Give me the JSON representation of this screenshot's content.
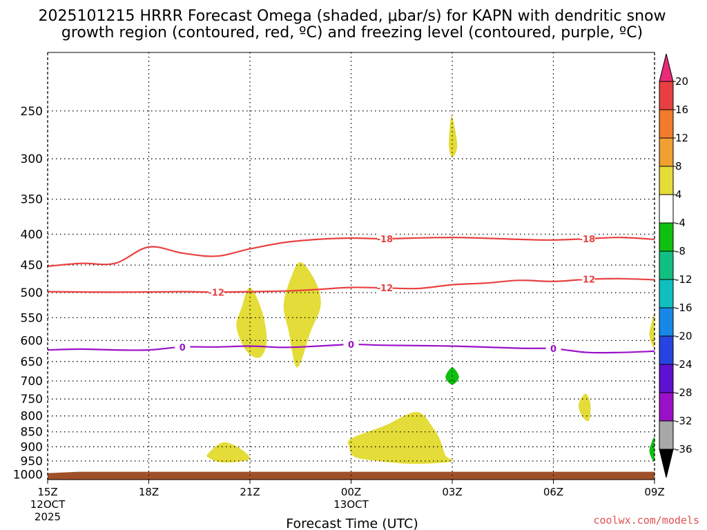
{
  "chart_data": {
    "type": "contour",
    "title_line1": "2025101215 HRRR Forecast Omega (shaded, μbar/s) for KAPN with dendritic snow",
    "title_line2": "growth region (contoured, red, ºC) and freezing level (contoured, purple, ºC)",
    "xlabel": "Forecast Time (UTC)",
    "ylabel": "",
    "credit": "coolwx.com/models",
    "x_range_hours": [
      0,
      18
    ],
    "y_range_hpa": [
      200,
      1020
    ],
    "x_ticks": [
      {
        "hour": 0,
        "label": "15Z",
        "sub1": "12OCT",
        "sub2": "2025"
      },
      {
        "hour": 3,
        "label": "18Z",
        "sub1": "",
        "sub2": ""
      },
      {
        "hour": 6,
        "label": "21Z",
        "sub1": "",
        "sub2": ""
      },
      {
        "hour": 9,
        "label": "00Z",
        "sub1": "13OCT",
        "sub2": ""
      },
      {
        "hour": 12,
        "label": "03Z",
        "sub1": "",
        "sub2": ""
      },
      {
        "hour": 15,
        "label": "06Z",
        "sub1": "",
        "sub2": ""
      },
      {
        "hour": 18,
        "label": "09Z",
        "sub1": "",
        "sub2": ""
      }
    ],
    "y_ticks": [
      "250",
      "300",
      "350",
      "400",
      "450",
      "500",
      "550",
      "600",
      "650",
      "700",
      "750",
      "800",
      "850",
      "900",
      "950",
      "1000"
    ],
    "contours": [
      {
        "name": "dgz-minus18",
        "label": "-18",
        "color": "#e84040",
        "labels_at_hours": [
          10,
          16
        ],
        "points": [
          [
            0,
            452
          ],
          [
            1,
            447
          ],
          [
            2,
            447
          ],
          [
            3,
            420
          ],
          [
            4,
            430
          ],
          [
            5,
            435
          ],
          [
            6,
            423
          ],
          [
            7,
            413
          ],
          [
            8,
            408
          ],
          [
            9,
            406
          ],
          [
            10,
            407
          ],
          [
            12,
            405
          ],
          [
            14,
            408
          ],
          [
            15,
            409
          ],
          [
            16,
            407
          ],
          [
            17,
            405
          ],
          [
            18,
            408
          ]
        ]
      },
      {
        "name": "dgz-minus12",
        "label": "-12",
        "color": "#e84040",
        "labels_at_hours": [
          5,
          10,
          16
        ],
        "points": [
          [
            0,
            498
          ],
          [
            2,
            499
          ],
          [
            4,
            498
          ],
          [
            5,
            499
          ],
          [
            7,
            497
          ],
          [
            8,
            494
          ],
          [
            9,
            490
          ],
          [
            10,
            491
          ],
          [
            11,
            492
          ],
          [
            12,
            485
          ],
          [
            13,
            482
          ],
          [
            14,
            477
          ],
          [
            15,
            479
          ],
          [
            16,
            475
          ],
          [
            17,
            474
          ],
          [
            18,
            476
          ]
        ]
      },
      {
        "name": "freezing-level",
        "label": "0",
        "color": "#9a10c8",
        "labels_at_hours": [
          4,
          9,
          15
        ],
        "points": [
          [
            0,
            622
          ],
          [
            1,
            620
          ],
          [
            2,
            622
          ],
          [
            3,
            622
          ],
          [
            4,
            615
          ],
          [
            5,
            615
          ],
          [
            6,
            613
          ],
          [
            7,
            616
          ],
          [
            8,
            613
          ],
          [
            9,
            609
          ],
          [
            10,
            611
          ],
          [
            12,
            613
          ],
          [
            14,
            618
          ],
          [
            15,
            619
          ],
          [
            16,
            628
          ],
          [
            17,
            628
          ],
          [
            18,
            625
          ]
        ]
      }
    ],
    "shaded_regions": [
      {
        "name": "omega-yellow-1",
        "category": "4 to 8",
        "color": "#e4dc38",
        "points": [
          [
            6.0,
            490
          ],
          [
            6.35,
            535
          ],
          [
            6.5,
            600
          ],
          [
            6.3,
            640
          ],
          [
            5.9,
            625
          ],
          [
            5.6,
            570
          ],
          [
            5.75,
            530
          ]
        ]
      },
      {
        "name": "omega-yellow-2",
        "category": "4 to 8",
        "color": "#e4dc38",
        "points": [
          [
            7.5,
            445
          ],
          [
            7.95,
            480
          ],
          [
            8.1,
            525
          ],
          [
            7.8,
            580
          ],
          [
            7.4,
            665
          ],
          [
            7.15,
            580
          ],
          [
            7.0,
            525
          ],
          [
            7.2,
            475
          ]
        ]
      },
      {
        "name": "omega-yellow-3",
        "category": "4 to 8",
        "color": "#e4dc38",
        "points": [
          [
            4.75,
            925
          ],
          [
            5.2,
            885
          ],
          [
            5.7,
            905
          ],
          [
            6.0,
            940
          ],
          [
            5.7,
            952
          ],
          [
            5.15,
            955
          ],
          [
            4.8,
            940
          ]
        ]
      },
      {
        "name": "omega-yellow-4",
        "category": "4 to 8",
        "color": "#e4dc38",
        "points": [
          [
            9.0,
            872
          ],
          [
            10.0,
            830
          ],
          [
            10.95,
            788
          ],
          [
            11.45,
            840
          ],
          [
            11.65,
            880
          ],
          [
            11.8,
            930
          ],
          [
            12.0,
            950
          ],
          [
            11.5,
            958
          ],
          [
            10.7,
            960
          ],
          [
            9.8,
            950
          ],
          [
            9.1,
            935
          ],
          [
            8.95,
            900
          ]
        ]
      },
      {
        "name": "omega-yellow-5",
        "category": "4 to 8",
        "color": "#e4dc38",
        "points": [
          [
            11.98,
            255
          ],
          [
            12.15,
            285
          ],
          [
            12.0,
            298
          ],
          [
            11.9,
            285
          ]
        ]
      },
      {
        "name": "omega-yellow-6",
        "category": "4 to 8",
        "color": "#e4dc38",
        "points": [
          [
            15.95,
            735
          ],
          [
            16.1,
            765
          ],
          [
            16.05,
            815
          ],
          [
            15.85,
            800
          ],
          [
            15.75,
            765
          ]
        ]
      },
      {
        "name": "omega-yellow-7",
        "category": "4 to 8",
        "color": "#e4dc38",
        "points": [
          [
            18,
            545
          ],
          [
            18,
            615
          ],
          [
            17.85,
            590
          ],
          [
            17.9,
            565
          ]
        ]
      },
      {
        "name": "omega-green-1",
        "category": "-8 to -4",
        "color": "#10c010",
        "points": [
          [
            12.0,
            665
          ],
          [
            12.2,
            690
          ],
          [
            12.0,
            710
          ],
          [
            11.8,
            690
          ]
        ]
      },
      {
        "name": "omega-green-2",
        "category": "-8 to -4",
        "color": "#10c010",
        "points": [
          [
            18,
            870
          ],
          [
            18,
            950
          ],
          [
            17.85,
            920
          ],
          [
            17.9,
            890
          ]
        ]
      }
    ],
    "terrain": {
      "name": "ground-below-surface",
      "color": "#a05028",
      "top_hpa": 990
    },
    "colorbar": {
      "labels": [
        "20",
        "16",
        "12",
        "8",
        "4",
        "-4",
        "-8",
        "-12",
        "-16",
        "-20",
        "-24",
        "-28",
        "-32",
        "-36"
      ],
      "bands": [
        {
          "color": "#e82a78",
          "kind": "top-triangle"
        },
        {
          "color": "#e84040"
        },
        {
          "color": "#f47a2c"
        },
        {
          "color": "#f0a030"
        },
        {
          "color": "#e4dc38"
        },
        {
          "color": "#ffffff"
        },
        {
          "color": "#10c010"
        },
        {
          "color": "#10c080"
        },
        {
          "color": "#10c0c0"
        },
        {
          "color": "#1888e8"
        },
        {
          "color": "#2844e0"
        },
        {
          "color": "#6010d0"
        },
        {
          "color": "#9a10c8"
        },
        {
          "color": "#a8a8a8"
        },
        {
          "color": "#000000",
          "kind": "bottom-triangle"
        }
      ]
    }
  }
}
